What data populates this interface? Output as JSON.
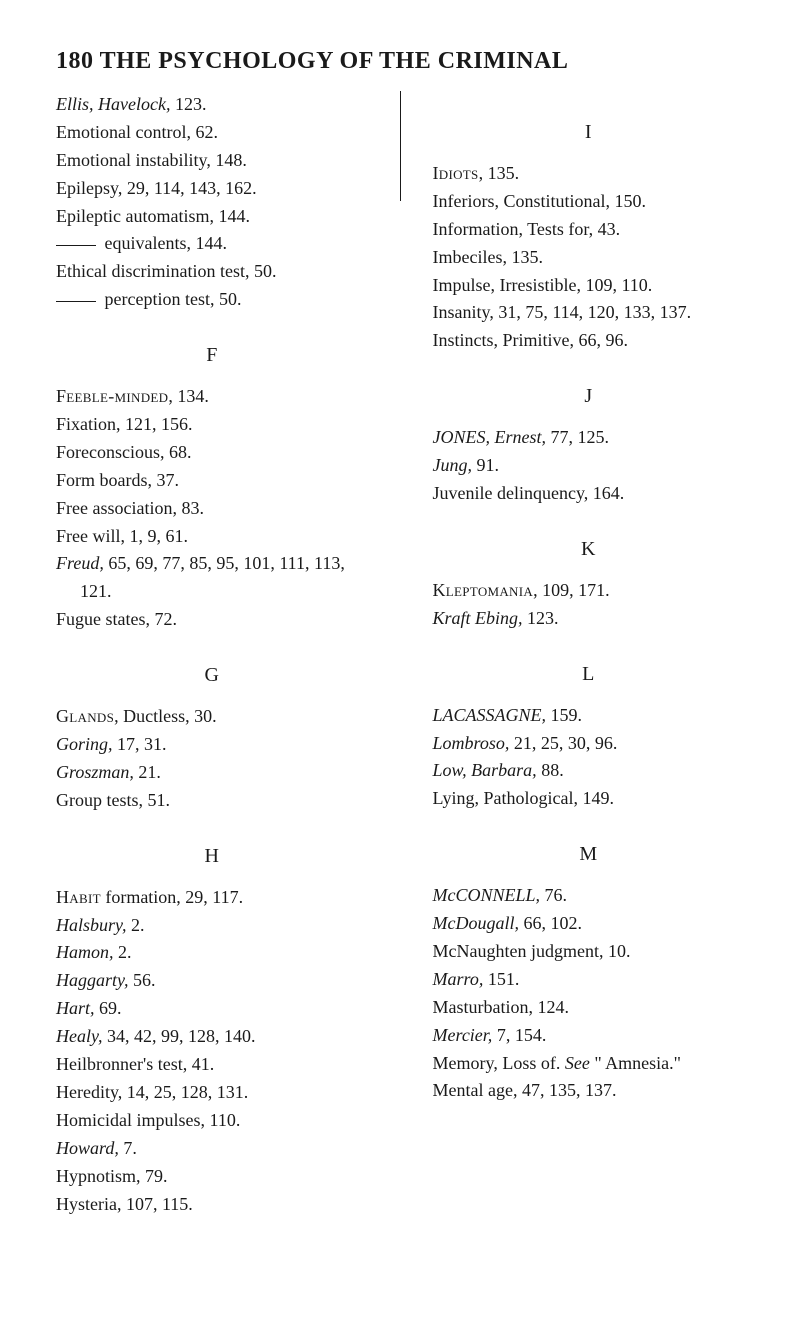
{
  "header": "180  THE PSYCHOLOGY OF THE CRIMINAL",
  "left": {
    "top": [
      {
        "html": "<em>Ellis, Havelock,</em> 123."
      },
      {
        "html": "Emotional control, 62."
      },
      {
        "html": "Emotional instability, 148."
      },
      {
        "html": "Epilepsy, 29, 114, 143, 162."
      },
      {
        "html": "Epileptic automatism, 144."
      },
      {
        "html": "<span class='dash'></span> equivalents, 144."
      },
      {
        "html": "Ethical discrimination test, 50."
      },
      {
        "html": "<span class='dash'></span> perception test, 50."
      }
    ],
    "sections": [
      {
        "letter": "F",
        "entries": [
          {
            "html": "<span class='sc'>Feeble-minded</span>, 134."
          },
          {
            "html": "Fixation, 121, 156."
          },
          {
            "html": "Foreconscious, 68."
          },
          {
            "html": "Form boards, 37."
          },
          {
            "html": "Free association, 83."
          },
          {
            "html": "Free will, 1, 9, 61."
          },
          {
            "html": "<em>Freud,</em> 65, 69, 77, 85, 95, 101, 111, 113, 121."
          },
          {
            "html": "Fugue states, 72."
          }
        ]
      },
      {
        "letter": "G",
        "entries": [
          {
            "html": "<span class='sc'>Glands</span>, Ductless, 30."
          },
          {
            "html": "<em>Goring,</em> 17, 31."
          },
          {
            "html": "<em>Groszman,</em> 21."
          },
          {
            "html": "Group tests, 51."
          }
        ]
      },
      {
        "letter": "H",
        "entries": [
          {
            "html": "<span class='sc'>Habit</span> formation, 29, 117."
          },
          {
            "html": "<em>Halsbury,</em> 2."
          },
          {
            "html": "<em>Hamon,</em> 2."
          },
          {
            "html": "<em>Haggarty,</em> 56."
          },
          {
            "html": "<em>Hart,</em> 69."
          },
          {
            "html": "<em>Healy,</em> 34, 42, 99, 128, 140."
          },
          {
            "html": "Heilbronner's test, 41."
          },
          {
            "html": "Heredity, 14, 25, 128, 131."
          },
          {
            "html": "Homicidal impulses, 110."
          },
          {
            "html": "<em>Howard,</em> 7."
          },
          {
            "html": "Hypnotism, 79."
          },
          {
            "html": "Hysteria, 107, 115."
          }
        ]
      }
    ]
  },
  "right": {
    "sections": [
      {
        "letter": "I",
        "entries": [
          {
            "html": "<span class='sc'>Idiots</span>, 135."
          },
          {
            "html": "Inferiors, Constitutional, 150."
          },
          {
            "html": "Information, Tests for, 43."
          },
          {
            "html": "Imbeciles, 135."
          },
          {
            "html": "Impulse, Irresistible, 109, 110."
          },
          {
            "html": "Insanity, 31, 75, 114, 120, 133, 137."
          },
          {
            "html": "Instincts, Primitive, 66, 96."
          }
        ]
      },
      {
        "letter": "J",
        "entries": [
          {
            "html": "<em>JONES, Ernest,</em> 77, 125."
          },
          {
            "html": "<em>Jung,</em> 91."
          },
          {
            "html": "Juvenile delinquency, 164."
          }
        ]
      },
      {
        "letter": "K",
        "entries": [
          {
            "html": "<span class='sc'>Kleptomania</span>, 109, 171."
          },
          {
            "html": "<em>Kraft Ebing,</em> 123."
          }
        ]
      },
      {
        "letter": "L",
        "entries": [
          {
            "html": "<em>LACASSAGNE,</em> 159."
          },
          {
            "html": "<em>Lombroso,</em> 21, 25, 30, 96."
          },
          {
            "html": "<em>Low, Barbara,</em> 88."
          },
          {
            "html": "Lying, Pathological, 149."
          }
        ]
      },
      {
        "letter": "M",
        "entries": [
          {
            "html": "<em>McCONNELL,</em> 76."
          },
          {
            "html": "<em>McDougall,</em> 66, 102."
          },
          {
            "html": "McNaughten judgment, 10."
          },
          {
            "html": "<em>Marro,</em> 151."
          },
          {
            "html": "Masturbation, 124."
          },
          {
            "html": "<em>Mercier,</em> 7, 154."
          },
          {
            "html": "Memory, Loss of. <em>See</em> \" Amnesia.\""
          },
          {
            "html": "Mental age, 47, 135, 137."
          }
        ]
      }
    ]
  }
}
